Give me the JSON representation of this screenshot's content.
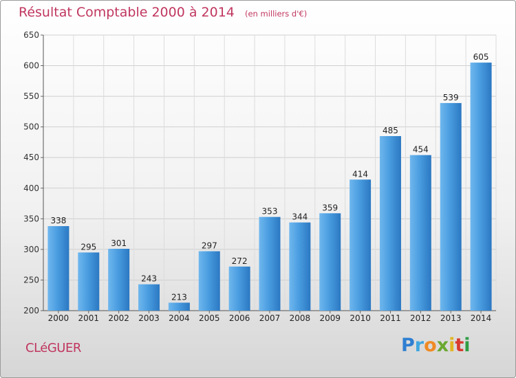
{
  "chart_data": {
    "type": "bar",
    "title": "Résultat Comptable 2000 à 2014",
    "subtitle": "(en milliers d'€)",
    "categories": [
      "2000",
      "2001",
      "2002",
      "2003",
      "2004",
      "2005",
      "2006",
      "2007",
      "2008",
      "2009",
      "2010",
      "2011",
      "2012",
      "2013",
      "2014"
    ],
    "values": [
      338,
      295,
      301,
      243,
      213,
      297,
      272,
      353,
      344,
      359,
      414,
      485,
      454,
      539,
      605
    ],
    "ylim": [
      200,
      650
    ],
    "yticks": [
      200,
      250,
      300,
      350,
      400,
      450,
      500,
      550,
      600,
      650
    ],
    "xlabel": "",
    "ylabel": "",
    "grid": true,
    "bar_color": "#3d8ed6"
  },
  "commune": "CLéGUER",
  "logo": {
    "letters": [
      "P",
      "r",
      "o",
      "x",
      "i",
      "t",
      "i"
    ],
    "colors": [
      "#2f7fd1",
      "#3fa7e0",
      "#f08a24",
      "#6aa82f",
      "#e2b522",
      "#d83a2f",
      "#2f9d44"
    ]
  }
}
